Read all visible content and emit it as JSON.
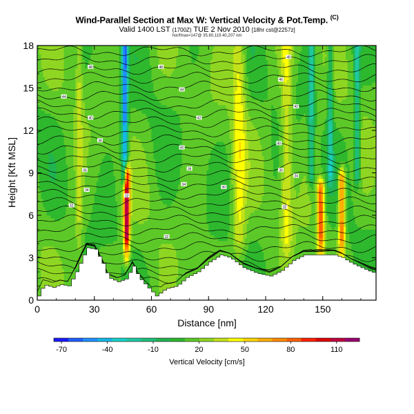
{
  "header": {
    "title": "Wind-Parallel Section at Max W: Vertical Velocity & Pot.Temp.",
    "title_tag": "(C)",
    "valid_main": "Valid 1400 LST ",
    "valid_small": "(1700Z)",
    "valid_date": " TUE 2 Nov 2010 ",
    "valid_small2": "[18hr cst@2257z]",
    "subline": "hor/fmax=147@ 35.60,119.40,207 nm"
  },
  "chart_data": {
    "type": "heatmap",
    "xlabel": "Distance [nm]",
    "ylabel": "Height [Kft MSL]",
    "xlim": [
      0,
      178
    ],
    "ylim": [
      0,
      18
    ],
    "x_ticks": [
      0,
      30,
      60,
      90,
      120,
      150
    ],
    "y_ticks": [
      0,
      3,
      6,
      9,
      12,
      15,
      18
    ],
    "x_tick_labels": [
      "0",
      "30",
      "60",
      "90",
      "120",
      "150"
    ],
    "y_tick_labels": [
      "0",
      "3",
      "6",
      "9",
      "12",
      "15",
      "18"
    ],
    "colorbar": {
      "label": "Vertical Velocity [cm/s]",
      "tick_values": [
        -70,
        -40,
        -10,
        20,
        50,
        80,
        110
      ],
      "tick_labels": [
        "-70",
        "-40",
        "-10",
        "20",
        "50",
        "80",
        "110"
      ],
      "range": [
        -75,
        125
      ],
      "colors": [
        "#1a1aff",
        "#1f5fff",
        "#1e90ff",
        "#14b8e6",
        "#18d2c8",
        "#20c8a0",
        "#1fbf7a",
        "#21b451",
        "#2eb82e",
        "#5cc928",
        "#8fd622",
        "#c4e21a",
        "#ffff00",
        "#ffd700",
        "#ffae00",
        "#ff8a00",
        "#ff6000",
        "#ff2000",
        "#e00000",
        "#c00040",
        "#9a0070"
      ]
    },
    "terrain": [
      [
        0,
        0.3
      ],
      [
        3,
        1.1
      ],
      [
        8,
        0.9
      ],
      [
        12,
        1.1
      ],
      [
        16,
        1.0
      ],
      [
        20,
        2.0
      ],
      [
        24,
        3.2
      ],
      [
        26,
        3.7
      ],
      [
        30,
        3.6
      ],
      [
        34,
        2.6
      ],
      [
        37,
        1.6
      ],
      [
        42,
        1.3
      ],
      [
        46,
        1.5
      ],
      [
        50,
        2.4
      ],
      [
        53,
        1.6
      ],
      [
        57,
        1.0
      ],
      [
        62,
        0.3
      ],
      [
        67,
        0.8
      ],
      [
        73,
        1.0
      ],
      [
        78,
        1.6
      ],
      [
        84,
        2.0
      ],
      [
        90,
        2.7
      ],
      [
        96,
        3.2
      ],
      [
        101,
        3.0
      ],
      [
        108,
        2.3
      ],
      [
        115,
        1.9
      ],
      [
        122,
        1.7
      ],
      [
        128,
        2.1
      ],
      [
        134,
        2.8
      ],
      [
        140,
        3.2
      ],
      [
        146,
        3.2
      ],
      [
        151,
        3.2
      ],
      [
        156,
        3.2
      ],
      [
        160,
        3.0
      ],
      [
        165,
        2.6
      ],
      [
        170,
        2.3
      ],
      [
        175,
        2.0
      ],
      [
        178,
        1.9
      ]
    ],
    "updraft_columns": [
      {
        "x": 47,
        "width": 1.6,
        "top": 8.8,
        "peak": 118
      },
      {
        "x": 149,
        "width": 1.8,
        "top": 7.8,
        "peak": 85
      },
      {
        "x": 160,
        "width": 1.7,
        "top": 8.6,
        "peak": 80
      },
      {
        "x": 106,
        "width": 3.5,
        "top": 18,
        "peak": 42
      },
      {
        "x": 131,
        "width": 3.0,
        "top": 18,
        "peak": 40
      },
      {
        "x": 22,
        "width": 1.8,
        "top": 18,
        "peak": 32
      }
    ],
    "downdraft_columns": [
      {
        "x": 46,
        "width": 1.6,
        "top": 18,
        "bottom": 9,
        "peak": -55
      },
      {
        "x": 144,
        "width": 1.5,
        "top": 18,
        "bottom": 9,
        "peak": -20
      },
      {
        "x": 154,
        "width": 1.5,
        "top": 18,
        "bottom": 9,
        "peak": -20
      },
      {
        "x": 168,
        "width": 1.5,
        "top": 18,
        "bottom": 9,
        "peak": -22
      }
    ],
    "theta_contour_labels": [
      {
        "x": 14,
        "y": 14.4,
        "text": "44"
      },
      {
        "x": 28,
        "y": 12.9,
        "text": "40"
      },
      {
        "x": 33,
        "y": 11.3,
        "text": "38"
      },
      {
        "x": 25,
        "y": 9.2,
        "text": "36"
      },
      {
        "x": 26,
        "y": 7.8,
        "text": "34"
      },
      {
        "x": 18,
        "y": 6.7,
        "text": "32"
      },
      {
        "x": 28,
        "y": 16.5,
        "text": "48"
      },
      {
        "x": 65,
        "y": 16.5,
        "text": "48"
      },
      {
        "x": 76,
        "y": 14.9,
        "text": "44"
      },
      {
        "x": 85,
        "y": 12.9,
        "text": "42"
      },
      {
        "x": 76,
        "y": 10.8,
        "text": "40"
      },
      {
        "x": 80,
        "y": 9.3,
        "text": "36"
      },
      {
        "x": 77,
        "y": 8.2,
        "text": "34"
      },
      {
        "x": 98,
        "y": 8.0,
        "text": "30"
      },
      {
        "x": 47,
        "y": 7.4,
        "text": "32"
      },
      {
        "x": 68,
        "y": 4.5,
        "text": "32"
      },
      {
        "x": 132,
        "y": 17.2,
        "text": "48"
      },
      {
        "x": 128,
        "y": 15.6,
        "text": "46"
      },
      {
        "x": 136,
        "y": 13.7,
        "text": "42"
      },
      {
        "x": 127,
        "y": 11.1,
        "text": "40"
      },
      {
        "x": 128,
        "y": 9.2,
        "text": "36"
      },
      {
        "x": 136,
        "y": 8.8,
        "text": "34"
      },
      {
        "x": 130,
        "y": 6.6,
        "text": "32"
      }
    ]
  }
}
